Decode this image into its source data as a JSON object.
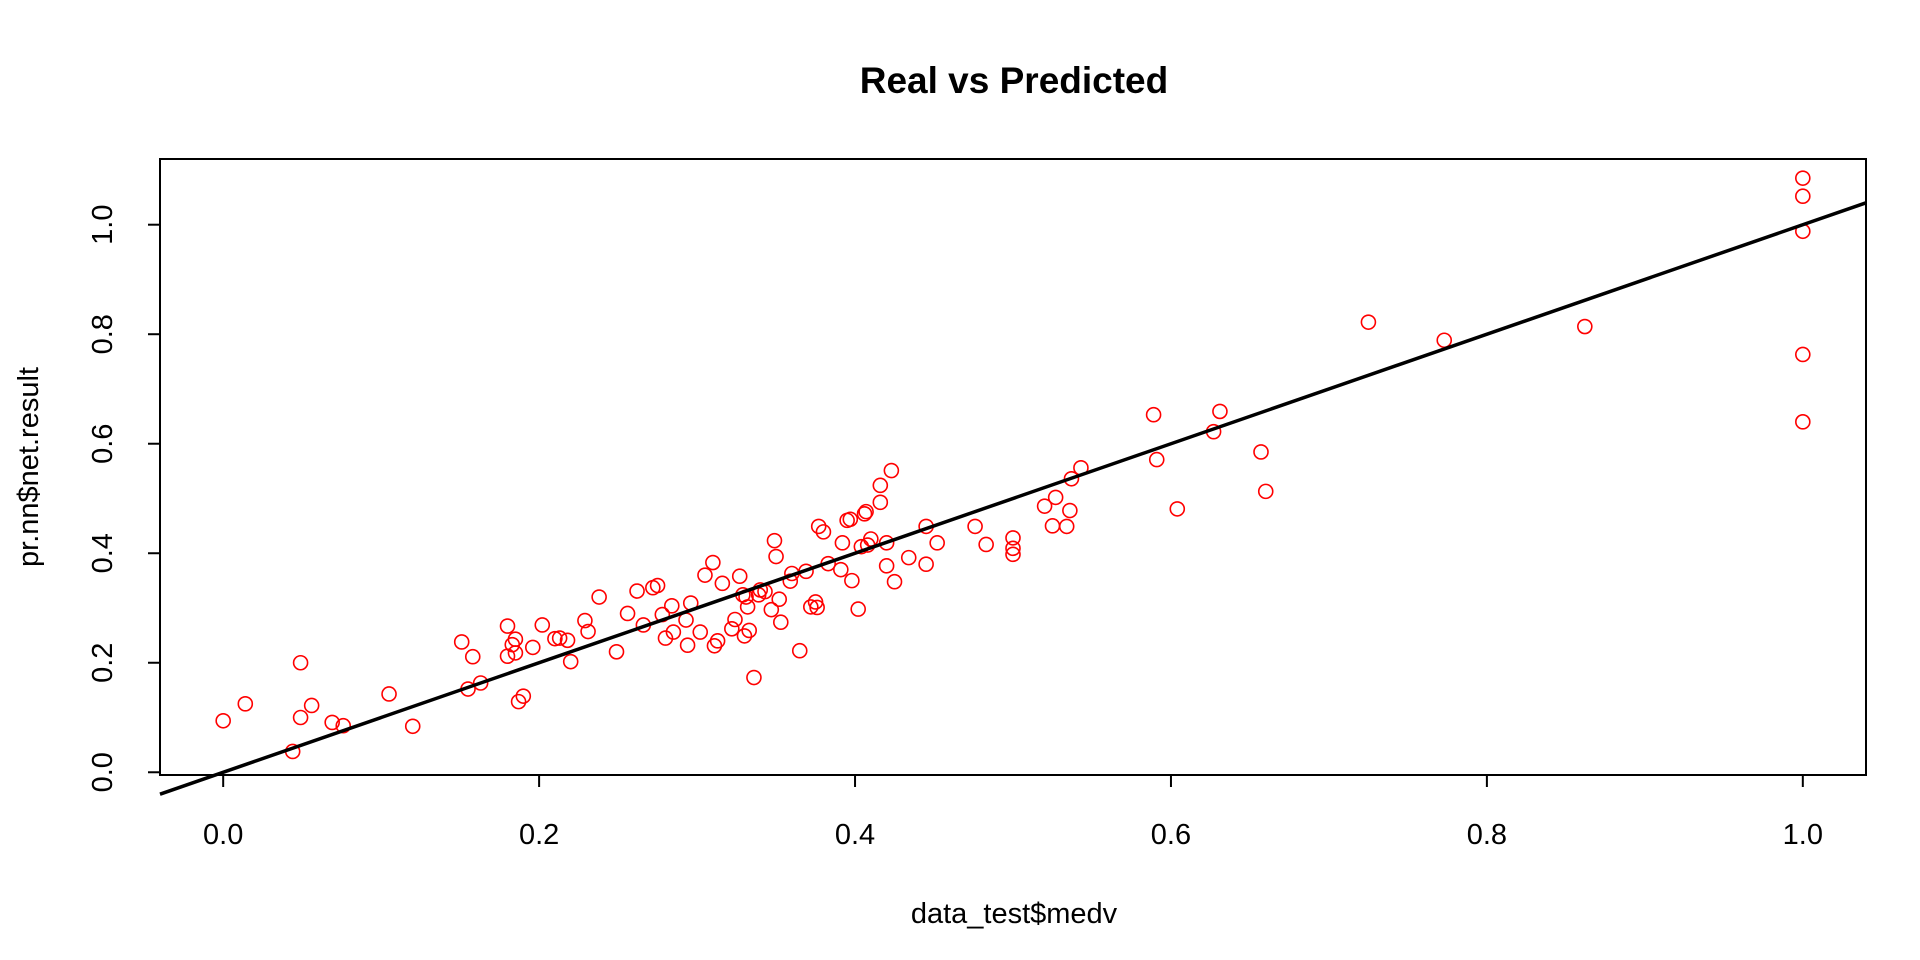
{
  "chart_data": {
    "type": "scatter",
    "title": "Real vs Predicted",
    "xlabel": "data_test$medv",
    "ylabel": "pr.nn$net.result",
    "xlim": [
      -0.04,
      1.04
    ],
    "ylim": [
      -0.005,
      1.12
    ],
    "x_ticks": [
      0.0,
      0.2,
      0.4,
      0.6,
      0.8,
      1.0
    ],
    "x_tick_labels": [
      "0.0",
      "0.2",
      "0.4",
      "0.6",
      "0.8",
      "1.0"
    ],
    "y_ticks": [
      0.0,
      0.2,
      0.4,
      0.6,
      0.8,
      1.0
    ],
    "y_tick_labels": [
      "0.0",
      "0.2",
      "0.4",
      "0.6",
      "0.8",
      "1.0"
    ],
    "grid": false,
    "point_color": "#ff0000",
    "line_color": "#000000",
    "reference_line": {
      "intercept": 0,
      "slope": 1
    },
    "points": [
      [
        0.0,
        0.094
      ],
      [
        0.014,
        0.125
      ],
      [
        0.044,
        0.038
      ],
      [
        0.049,
        0.1
      ],
      [
        0.049,
        0.2
      ],
      [
        0.056,
        0.122
      ],
      [
        0.069,
        0.091
      ],
      [
        0.076,
        0.085
      ],
      [
        0.105,
        0.143
      ],
      [
        0.12,
        0.084
      ],
      [
        0.151,
        0.238
      ],
      [
        0.155,
        0.152
      ],
      [
        0.158,
        0.211
      ],
      [
        0.163,
        0.163
      ],
      [
        0.18,
        0.212
      ],
      [
        0.18,
        0.267
      ],
      [
        0.183,
        0.233
      ],
      [
        0.185,
        0.243
      ],
      [
        0.185,
        0.218
      ],
      [
        0.187,
        0.129
      ],
      [
        0.19,
        0.139
      ],
      [
        0.196,
        0.228
      ],
      [
        0.202,
        0.269
      ],
      [
        0.21,
        0.244
      ],
      [
        0.213,
        0.245
      ],
      [
        0.218,
        0.241
      ],
      [
        0.22,
        0.202
      ],
      [
        0.229,
        0.277
      ],
      [
        0.231,
        0.257
      ],
      [
        0.238,
        0.32
      ],
      [
        0.249,
        0.22
      ],
      [
        0.256,
        0.29
      ],
      [
        0.262,
        0.331
      ],
      [
        0.266,
        0.269
      ],
      [
        0.272,
        0.337
      ],
      [
        0.275,
        0.341
      ],
      [
        0.278,
        0.288
      ],
      [
        0.28,
        0.245
      ],
      [
        0.284,
        0.304
      ],
      [
        0.285,
        0.256
      ],
      [
        0.293,
        0.278
      ],
      [
        0.294,
        0.232
      ],
      [
        0.296,
        0.309
      ],
      [
        0.302,
        0.256
      ],
      [
        0.305,
        0.36
      ],
      [
        0.31,
        0.383
      ],
      [
        0.311,
        0.231
      ],
      [
        0.313,
        0.24
      ],
      [
        0.316,
        0.345
      ],
      [
        0.322,
        0.262
      ],
      [
        0.324,
        0.279
      ],
      [
        0.327,
        0.358
      ],
      [
        0.329,
        0.324
      ],
      [
        0.33,
        0.249
      ],
      [
        0.331,
        0.32
      ],
      [
        0.332,
        0.302
      ],
      [
        0.333,
        0.259
      ],
      [
        0.336,
        0.173
      ],
      [
        0.339,
        0.324
      ],
      [
        0.34,
        0.333
      ],
      [
        0.343,
        0.33
      ],
      [
        0.347,
        0.297
      ],
      [
        0.349,
        0.423
      ],
      [
        0.35,
        0.394
      ],
      [
        0.352,
        0.316
      ],
      [
        0.353,
        0.274
      ],
      [
        0.359,
        0.349
      ],
      [
        0.36,
        0.363
      ],
      [
        0.365,
        0.222
      ],
      [
        0.369,
        0.367
      ],
      [
        0.372,
        0.302
      ],
      [
        0.375,
        0.311
      ],
      [
        0.376,
        0.301
      ],
      [
        0.377,
        0.449
      ],
      [
        0.38,
        0.439
      ],
      [
        0.383,
        0.381
      ],
      [
        0.391,
        0.37
      ],
      [
        0.392,
        0.419
      ],
      [
        0.395,
        0.46
      ],
      [
        0.397,
        0.462
      ],
      [
        0.398,
        0.35
      ],
      [
        0.402,
        0.298
      ],
      [
        0.404,
        0.412
      ],
      [
        0.406,
        0.472
      ],
      [
        0.407,
        0.476
      ],
      [
        0.408,
        0.415
      ],
      [
        0.41,
        0.426
      ],
      [
        0.416,
        0.493
      ],
      [
        0.416,
        0.524
      ],
      [
        0.42,
        0.377
      ],
      [
        0.42,
        0.419
      ],
      [
        0.423,
        0.551
      ],
      [
        0.425,
        0.348
      ],
      [
        0.434,
        0.392
      ],
      [
        0.445,
        0.38
      ],
      [
        0.445,
        0.449
      ],
      [
        0.452,
        0.419
      ],
      [
        0.476,
        0.449
      ],
      [
        0.483,
        0.416
      ],
      [
        0.5,
        0.398
      ],
      [
        0.5,
        0.409
      ],
      [
        0.5,
        0.428
      ],
      [
        0.52,
        0.486
      ],
      [
        0.525,
        0.45
      ],
      [
        0.527,
        0.502
      ],
      [
        0.534,
        0.449
      ],
      [
        0.536,
        0.478
      ],
      [
        0.537,
        0.536
      ],
      [
        0.543,
        0.556
      ],
      [
        0.589,
        0.653
      ],
      [
        0.591,
        0.571
      ],
      [
        0.604,
        0.481
      ],
      [
        0.627,
        0.622
      ],
      [
        0.631,
        0.659
      ],
      [
        0.657,
        0.585
      ],
      [
        0.66,
        0.513
      ],
      [
        0.725,
        0.822
      ],
      [
        0.773,
        0.789
      ],
      [
        0.862,
        0.814
      ],
      [
        1.0,
        1.085
      ],
      [
        1.0,
        1.052
      ],
      [
        1.0,
        0.988
      ],
      [
        1.0,
        0.763
      ],
      [
        1.0,
        0.64
      ]
    ]
  }
}
